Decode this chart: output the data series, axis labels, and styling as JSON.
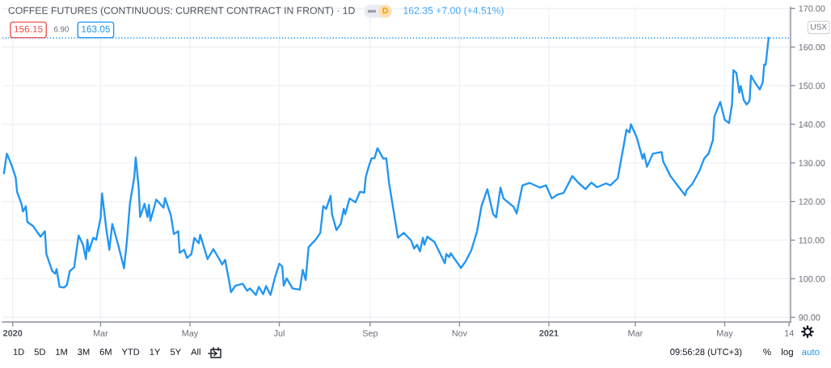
{
  "chart_data": {
    "type": "line",
    "title": "COFFEE FUTURES (CONTINUOUS: CURRENT CONTRACT IN FRONT) · 1D",
    "ylabel": "USX",
    "annotations": [
      "D",
      "162.35 +7.00 (+4.51%)",
      "156.15",
      "6.90",
      "163.05",
      "1D",
      "5D",
      "1M",
      "3M",
      "6M",
      "YTD",
      "1Y",
      "5Y",
      "All",
      "09:56:28 (UTC+3)",
      "%",
      "log",
      "auto"
    ],
    "x": [
      "2019-12-26",
      "2019-12-28",
      "2019-12-31",
      "2020-01-03",
      "2020-01-04",
      "2020-01-07",
      "2020-01-08",
      "2020-01-10",
      "2020-01-11",
      "2020-01-15",
      "2020-01-20",
      "2020-01-23",
      "2020-01-24",
      "2020-01-28",
      "2020-01-30",
      "2020-01-31",
      "2020-02-02",
      "2020-02-05",
      "2020-02-07",
      "2020-02-09",
      "2020-02-12",
      "2020-02-15",
      "2020-02-18",
      "2020-02-20",
      "2020-02-21",
      "2020-02-22",
      "2020-02-25",
      "2020-02-27",
      "2020-03-01",
      "2020-03-02",
      "2020-03-05",
      "2020-03-07",
      "2020-03-09",
      "2020-03-13",
      "2020-03-17",
      "2020-03-19",
      "2020-03-21",
      "2020-03-24",
      "2020-03-25",
      "2020-03-27",
      "2020-03-28",
      "2020-03-31",
      "2020-04-02",
      "2020-04-03",
      "2020-04-04",
      "2020-04-08",
      "2020-04-13",
      "2020-04-14",
      "2020-04-18",
      "2020-04-20",
      "2020-04-23",
      "2020-04-24",
      "2020-04-27",
      "2020-04-29",
      "2020-05-02",
      "2020-05-04",
      "2020-05-07",
      "2020-05-08",
      "2020-05-13",
      "2020-05-17",
      "2020-05-21",
      "2020-05-23",
      "2020-05-25",
      "2020-05-28",
      "2020-05-29",
      "2020-06-01",
      "2020-06-06",
      "2020-06-09",
      "2020-06-11",
      "2020-06-15",
      "2020-06-17",
      "2020-06-20",
      "2020-06-22",
      "2020-06-25",
      "2020-06-28",
      "2020-07-01",
      "2020-07-03",
      "2020-07-04",
      "2020-07-06",
      "2020-07-10",
      "2020-07-15",
      "2020-07-17",
      "2020-07-19",
      "2020-07-21",
      "2020-07-26",
      "2020-07-29",
      "2020-07-31",
      "2020-08-02",
      "2020-08-05",
      "2020-08-06",
      "2020-08-09",
      "2020-08-12",
      "2020-08-14",
      "2020-08-15",
      "2020-08-18",
      "2020-08-22",
      "2020-08-25",
      "2020-08-28",
      "2020-08-29",
      "2020-08-31",
      "2020-09-02",
      "2020-09-04",
      "2020-09-06",
      "2020-09-10",
      "2020-09-12",
      "2020-09-14",
      "2020-09-20",
      "2020-09-24",
      "2020-09-29",
      "2020-10-01",
      "2020-10-03",
      "2020-10-05",
      "2020-10-07",
      "2020-10-08",
      "2020-10-10",
      "2020-10-15",
      "2020-10-22",
      "2020-10-23",
      "2020-10-25",
      "2020-10-26",
      "2020-11-02",
      "2020-11-05",
      "2020-11-09",
      "2020-11-13",
      "2020-11-16",
      "2020-11-20",
      "2020-11-24",
      "2020-11-26",
      "2020-11-29",
      "2020-12-01",
      "2020-12-08",
      "2020-12-10",
      "2020-12-14",
      "2020-12-19",
      "2020-12-26",
      "2020-12-30",
      "2021-01-03",
      "2021-01-07",
      "2021-01-11",
      "2021-01-17",
      "2021-01-21",
      "2021-01-26",
      "2021-01-30",
      "2021-02-03",
      "2021-02-09",
      "2021-02-12",
      "2021-02-17",
      "2021-02-20",
      "2021-02-23",
      "2021-02-25",
      "2021-02-26",
      "2021-03-02",
      "2021-03-06",
      "2021-03-07",
      "2021-03-09",
      "2021-03-13",
      "2021-03-19",
      "2021-03-20",
      "2021-03-25",
      "2021-03-31",
      "2021-04-04",
      "2021-04-05",
      "2021-04-09",
      "2021-04-14",
      "2021-04-17",
      "2021-04-20",
      "2021-04-23",
      "2021-04-24",
      "2021-04-28",
      "2021-05-01",
      "2021-05-04",
      "2021-05-06",
      "2021-05-07",
      "2021-05-09",
      "2021-05-11",
      "2021-05-12",
      "2021-05-14",
      "2021-05-16",
      "2021-05-18",
      "2021-05-19",
      "2021-05-22",
      "2021-05-25",
      "2021-05-27",
      "2021-05-28",
      "2021-05-29",
      "2021-05-31"
    ],
    "series": [
      {
        "color": "#2196f3",
        "values": [
          127.3,
          132.4,
          129.7,
          126.3,
          122.5,
          119.4,
          117.4,
          118.8,
          114.7,
          113.6,
          110.9,
          112.3,
          106.4,
          102.0,
          101.3,
          102.5,
          97.9,
          97.7,
          98.4,
          102.0,
          103.0,
          111.2,
          108.8,
          105.1,
          110.1,
          107.1,
          110.6,
          110.1,
          115.7,
          122.1,
          112.6,
          107.5,
          114.2,
          108.8,
          102.7,
          109.9,
          119.4,
          126.3,
          131.4,
          123.6,
          116.0,
          119.4,
          116.0,
          119.1,
          115.0,
          120.5,
          118.4,
          120.9,
          116.4,
          111.6,
          112.3,
          106.7,
          107.5,
          105.4,
          106.4,
          110.6,
          109.2,
          111.4,
          105.1,
          107.7,
          105.1,
          103.7,
          104.9,
          98.9,
          96.5,
          98.2,
          98.7,
          96.9,
          97.5,
          95.8,
          97.9,
          96.0,
          98.1,
          95.8,
          100.3,
          103.9,
          103.2,
          98.2,
          100.1,
          97.5,
          97.2,
          102.3,
          99.7,
          108.2,
          110.2,
          111.9,
          118.8,
          118.1,
          121.5,
          116.7,
          112.6,
          114.3,
          118.1,
          116.7,
          120.8,
          119.8,
          122.5,
          122.3,
          126.3,
          129.0,
          131.2,
          131.2,
          133.8,
          131.1,
          131.2,
          124.6,
          110.6,
          111.9,
          109.9,
          107.8,
          108.8,
          107.1,
          110.6,
          108.8,
          110.9,
          109.5,
          104.0,
          106.4,
          105.6,
          106.6,
          102.8,
          104.4,
          107.3,
          112.3,
          118.8,
          123.2,
          116.7,
          115.9,
          123.6,
          120.8,
          118.6,
          116.9,
          124.2,
          124.8,
          123.6,
          124.2,
          120.8,
          121.8,
          122.2,
          126.6,
          124.9,
          123.2,
          124.9,
          123.7,
          124.7,
          124.2,
          126.0,
          132.2,
          138.6,
          137.9,
          140.0,
          136.6,
          131.1,
          132.4,
          129.0,
          132.4,
          132.8,
          130.4,
          126.6,
          123.6,
          121.6,
          122.9,
          124.6,
          128.1,
          131.1,
          132.4,
          135.9,
          142.0,
          145.8,
          141.2,
          140.3,
          145.1,
          154.0,
          153.3,
          148.2,
          149.9,
          146.3,
          145.1,
          146.1,
          152.6,
          150.6,
          149.0,
          150.9,
          155.5,
          155.4,
          162.35
        ]
      }
    ],
    "xlim": [
      "2019-12-25",
      "2021-06-15"
    ],
    "ylim": [
      88.8,
      170.3
    ],
    "xticks": [
      {
        "value": "2020-01-01",
        "label": "2020"
      },
      {
        "value": "2020-03-01",
        "label": "Mar"
      },
      {
        "value": "2020-05-01",
        "label": "May"
      },
      {
        "value": "2020-07-01",
        "label": "Jul"
      },
      {
        "value": "2020-09-01",
        "label": "Sep"
      },
      {
        "value": "2020-11-01",
        "label": "Nov"
      },
      {
        "value": "2021-01-01",
        "label": "2021"
      },
      {
        "value": "2021-03-01",
        "label": "Mar"
      },
      {
        "value": "2021-05-01",
        "label": "May"
      },
      {
        "value": "2021-06-14",
        "label": "14"
      }
    ],
    "yticks": [
      {
        "value": 90,
        "label": "90.00"
      },
      {
        "value": 100,
        "label": "100.00"
      },
      {
        "value": 110,
        "label": "110.00"
      },
      {
        "value": 120,
        "label": "120.00"
      },
      {
        "value": 130,
        "label": "130.00"
      },
      {
        "value": 140,
        "label": "140.00"
      },
      {
        "value": 150,
        "label": "150.00"
      },
      {
        "value": 160,
        "label": "160.00"
      },
      {
        "value": 170,
        "label": "170.00"
      }
    ],
    "grid": true,
    "ref_lines": [
      {
        "axis": "y",
        "value": 162.35,
        "color": "#2196f3",
        "line_style": "dotted"
      }
    ]
  }
}
